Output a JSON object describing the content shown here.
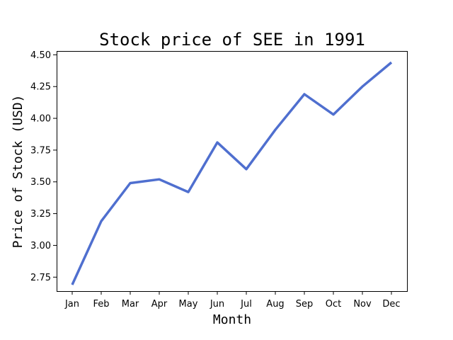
{
  "chart_data": {
    "type": "line",
    "title": "Stock price of SEE in 1991",
    "xlabel": "Month",
    "ylabel": "Price of Stock (USD)",
    "categories": [
      "Jan",
      "Feb",
      "Mar",
      "Apr",
      "May",
      "Jun",
      "Jul",
      "Aug",
      "Sep",
      "Oct",
      "Nov",
      "Dec"
    ],
    "series": [
      {
        "color": "#4f6fcf",
        "values": [
          2.69,
          3.19,
          3.49,
          3.52,
          3.42,
          3.81,
          3.6,
          3.91,
          4.19,
          4.03,
          4.25,
          4.44
        ]
      }
    ],
    "yticks": [
      "2.75",
      "3.00",
      "3.25",
      "3.50",
      "3.75",
      "4.00",
      "4.25",
      "4.50"
    ],
    "ylim": [
      2.64,
      4.53
    ],
    "grid": false,
    "legend": "none"
  }
}
